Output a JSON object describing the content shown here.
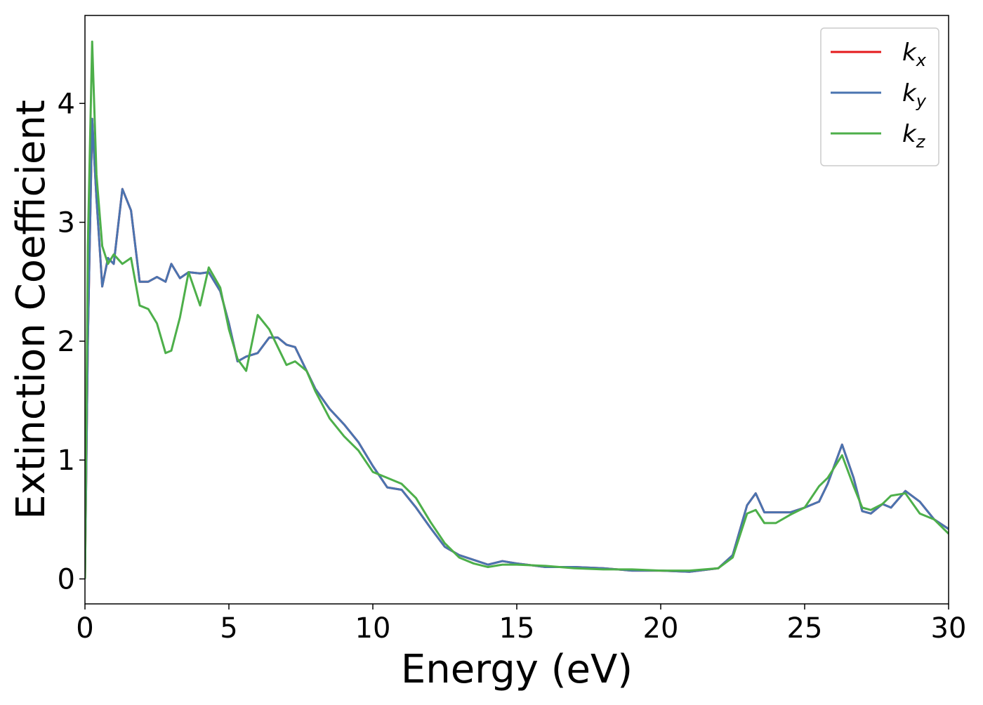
{
  "chart_data": {
    "type": "line",
    "xlabel": "Energy (eV)",
    "ylabel": "Extinction Coefficient",
    "x": [
      0,
      0.1,
      0.25,
      0.4,
      0.6,
      0.8,
      1.0,
      1.3,
      1.6,
      1.9,
      2.2,
      2.5,
      2.8,
      3.0,
      3.3,
      3.6,
      4.0,
      4.3,
      4.7,
      5.0,
      5.3,
      5.6,
      6.0,
      6.4,
      6.7,
      7.0,
      7.3,
      7.7,
      8.0,
      8.5,
      9.0,
      9.5,
      10.0,
      10.5,
      11.0,
      11.5,
      12.0,
      12.5,
      13.0,
      13.5,
      14.0,
      14.5,
      15.0,
      16,
      17,
      18,
      19,
      20,
      21,
      22,
      22.5,
      23,
      23.3,
      23.6,
      24,
      24.5,
      25,
      25.5,
      25.8,
      26.3,
      26.7,
      27.0,
      27.3,
      27.7,
      28.0,
      28.5,
      29.0,
      29.5,
      30.0
    ],
    "series": [
      {
        "name": "kx",
        "color": "#e41a1c",
        "values": [
          0,
          2.0,
          3.87,
          3.2,
          2.46,
          2.7,
          2.65,
          3.28,
          3.1,
          2.5,
          2.5,
          2.54,
          2.5,
          2.65,
          2.53,
          2.58,
          2.57,
          2.58,
          2.42,
          2.15,
          1.83,
          1.87,
          1.9,
          2.03,
          2.03,
          1.97,
          1.95,
          1.75,
          1.6,
          1.43,
          1.3,
          1.15,
          0.95,
          0.77,
          0.75,
          0.6,
          0.43,
          0.27,
          0.2,
          0.16,
          0.12,
          0.15,
          0.13,
          0.1,
          0.1,
          0.09,
          0.07,
          0.07,
          0.06,
          0.09,
          0.2,
          0.62,
          0.72,
          0.56,
          0.56,
          0.56,
          0.6,
          0.65,
          0.8,
          1.13,
          0.85,
          0.57,
          0.55,
          0.63,
          0.6,
          0.74,
          0.65,
          0.5,
          0.42
        ]
      },
      {
        "name": "ky",
        "color": "#4a74b0",
        "values": [
          0,
          2.0,
          3.87,
          3.2,
          2.46,
          2.7,
          2.65,
          3.28,
          3.1,
          2.5,
          2.5,
          2.54,
          2.5,
          2.65,
          2.53,
          2.58,
          2.57,
          2.58,
          2.42,
          2.15,
          1.83,
          1.87,
          1.9,
          2.03,
          2.03,
          1.97,
          1.95,
          1.75,
          1.6,
          1.43,
          1.3,
          1.15,
          0.95,
          0.77,
          0.75,
          0.6,
          0.43,
          0.27,
          0.2,
          0.16,
          0.12,
          0.15,
          0.13,
          0.1,
          0.1,
          0.09,
          0.07,
          0.07,
          0.06,
          0.09,
          0.2,
          0.62,
          0.72,
          0.56,
          0.56,
          0.56,
          0.6,
          0.65,
          0.8,
          1.13,
          0.85,
          0.57,
          0.55,
          0.63,
          0.6,
          0.74,
          0.65,
          0.5,
          0.42
        ]
      },
      {
        "name": "kz",
        "color": "#4daf4a",
        "values": [
          0,
          2.8,
          4.52,
          3.4,
          2.8,
          2.65,
          2.73,
          2.65,
          2.7,
          2.3,
          2.27,
          2.15,
          1.9,
          1.92,
          2.2,
          2.58,
          2.3,
          2.62,
          2.45,
          2.1,
          1.85,
          1.75,
          2.22,
          2.1,
          1.95,
          1.8,
          1.83,
          1.75,
          1.58,
          1.35,
          1.2,
          1.08,
          0.9,
          0.85,
          0.8,
          0.68,
          0.48,
          0.3,
          0.18,
          0.13,
          0.1,
          0.12,
          0.12,
          0.11,
          0.09,
          0.08,
          0.08,
          0.07,
          0.07,
          0.09,
          0.18,
          0.55,
          0.58,
          0.47,
          0.47,
          0.54,
          0.6,
          0.78,
          0.85,
          1.04,
          0.78,
          0.6,
          0.58,
          0.63,
          0.7,
          0.72,
          0.55,
          0.5,
          0.38
        ]
      }
    ],
    "xlim": [
      0,
      30
    ],
    "ylim": [
      -0.21,
      4.74
    ],
    "xticks": [
      0,
      5,
      10,
      15,
      20,
      25,
      30
    ],
    "yticks": [
      0,
      1,
      2,
      3,
      4
    ],
    "legend": "upper right",
    "grid": false
  }
}
